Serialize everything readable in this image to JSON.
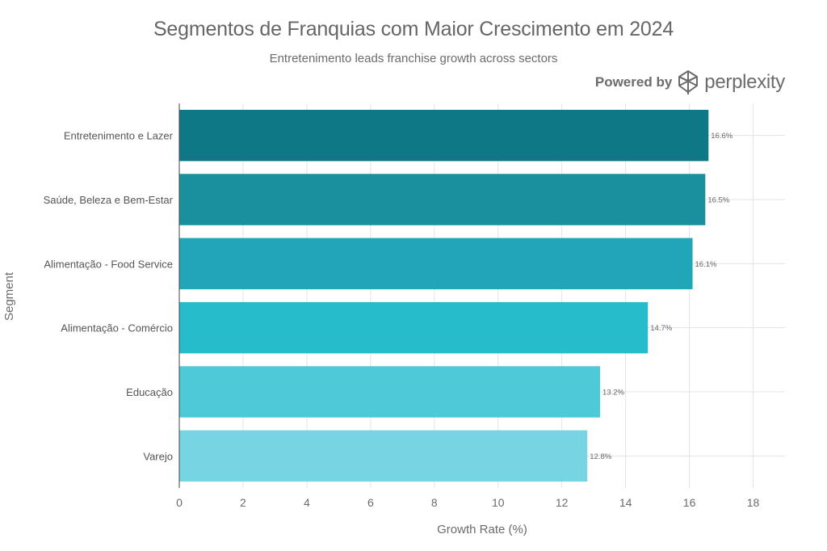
{
  "header": {
    "title": "Segmentos de Franquias com Maior Crescimento em 2024",
    "subtitle": "Entretenimento leads franchise growth across sectors"
  },
  "branding": {
    "powered_label": "Powered by",
    "brand_name": "perplexity",
    "logo_icon": "perplexity-logo-icon"
  },
  "chart_data": {
    "type": "bar",
    "orientation": "horizontal",
    "xlabel": "Growth Rate (%)",
    "ylabel": "Segment",
    "xlim": [
      0,
      19
    ],
    "xticks": [
      0,
      2,
      4,
      6,
      8,
      10,
      12,
      14,
      16,
      18
    ],
    "grid": true,
    "categories": [
      "Entretenimento e Lazer",
      "Saúde, Beleza e Bem-Estar",
      "Alimentação - Food Service",
      "Alimentação - Comércio",
      "Educação",
      "Varejo"
    ],
    "values": [
      16.6,
      16.5,
      16.1,
      14.7,
      13.2,
      12.8
    ],
    "data_labels": [
      "16.6%",
      "16.5%",
      "16.1%",
      "14.7%",
      "13.2%",
      "12.8%"
    ],
    "colors": [
      "#0E7886",
      "#1A8F9D",
      "#20A6B7",
      "#26BCCB",
      "#4DC9D8",
      "#77D4E3"
    ]
  }
}
